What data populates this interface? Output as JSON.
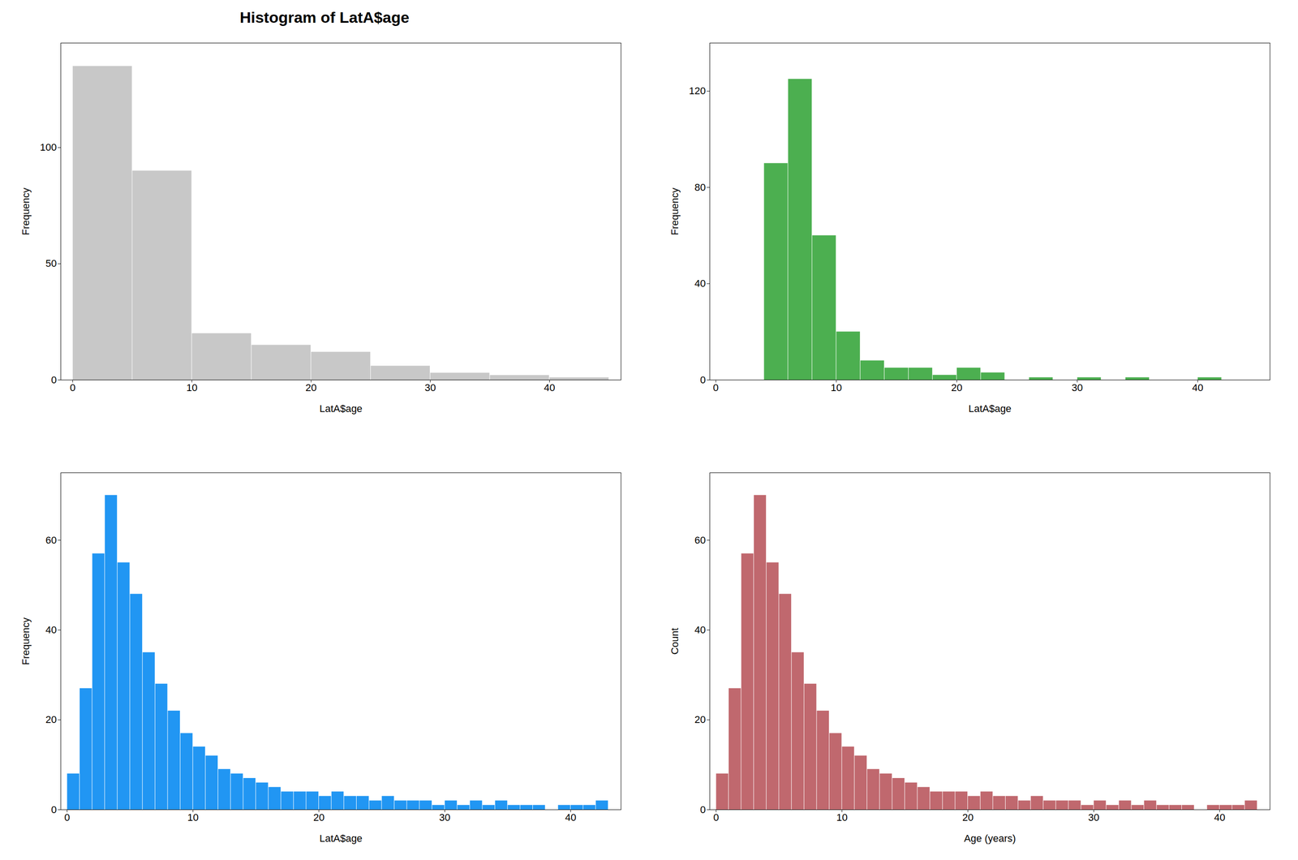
{
  "chart_data": [
    {
      "type": "histogram",
      "title": "Histogram of LatA$age",
      "color": "#c8c8c8",
      "xlabel": "LatA$age",
      "ylabel": "Frequency",
      "xlim": [
        -1,
        46
      ],
      "ylim": [
        0,
        145
      ],
      "xticks": [
        0,
        10,
        20,
        30,
        40
      ],
      "yticks": [
        0,
        50,
        100
      ],
      "bins": [
        0,
        5,
        10,
        15,
        20,
        25,
        30,
        35,
        40,
        45
      ],
      "values": [
        135,
        90,
        20,
        15,
        12,
        6,
        3,
        2,
        1
      ]
    },
    {
      "type": "histogram",
      "color": "#4caf50",
      "xlabel": "LatA$age",
      "ylabel": "Frequency",
      "xlim": [
        -0.5,
        46
      ],
      "ylim": [
        0,
        140
      ],
      "xticks": [
        0,
        10,
        20,
        30,
        40
      ],
      "yticks": [
        0,
        40,
        80,
        120
      ],
      "bins": [
        4,
        6,
        8,
        10,
        12,
        14,
        16,
        18,
        20,
        22,
        24,
        26,
        28,
        30,
        32,
        34,
        36,
        38,
        40,
        42,
        44
      ],
      "values": [
        90,
        125,
        60,
        20,
        8,
        5,
        5,
        2,
        5,
        3,
        0,
        1,
        0,
        1,
        0,
        1,
        0,
        0,
        1,
        0
      ]
    },
    {
      "type": "histogram",
      "color": "#2196f3",
      "xlabel": "LatA$age",
      "ylabel": "Frequency",
      "xlim": [
        -0.5,
        44
      ],
      "ylim": [
        0,
        75
      ],
      "xticks": [
        0,
        10,
        20,
        30,
        40
      ],
      "yticks": [
        0,
        20,
        40,
        60
      ],
      "bins": [
        0,
        1,
        2,
        3,
        4,
        5,
        6,
        7,
        8,
        9,
        10,
        11,
        12,
        13,
        14,
        15,
        16,
        17,
        18,
        19,
        20,
        21,
        22,
        23,
        24,
        25,
        26,
        27,
        28,
        29,
        30,
        31,
        32,
        33,
        34,
        35,
        36,
        37,
        38,
        39,
        40,
        41,
        42,
        43
      ],
      "values": [
        8,
        27,
        57,
        70,
        55,
        48,
        35,
        28,
        22,
        17,
        14,
        12,
        9,
        8,
        7,
        6,
        5,
        4,
        4,
        4,
        3,
        4,
        3,
        3,
        2,
        3,
        2,
        2,
        2,
        1,
        2,
        1,
        2,
        1,
        2,
        1,
        1,
        1,
        0,
        1,
        1,
        1,
        2
      ]
    },
    {
      "type": "histogram",
      "color": "#c0686e",
      "xlabel": "Age (years)",
      "ylabel": "Count",
      "xlim": [
        -0.5,
        44
      ],
      "ylim": [
        0,
        75
      ],
      "xticks": [
        0,
        10,
        20,
        30,
        40
      ],
      "yticks": [
        0,
        20,
        40,
        60
      ],
      "bins": [
        0,
        1,
        2,
        3,
        4,
        5,
        6,
        7,
        8,
        9,
        10,
        11,
        12,
        13,
        14,
        15,
        16,
        17,
        18,
        19,
        20,
        21,
        22,
        23,
        24,
        25,
        26,
        27,
        28,
        29,
        30,
        31,
        32,
        33,
        34,
        35,
        36,
        37,
        38,
        39,
        40,
        41,
        42,
        43
      ],
      "values": [
        8,
        27,
        57,
        70,
        55,
        48,
        35,
        28,
        22,
        17,
        14,
        12,
        9,
        8,
        7,
        6,
        5,
        4,
        4,
        4,
        3,
        4,
        3,
        3,
        2,
        3,
        2,
        2,
        2,
        1,
        2,
        1,
        2,
        1,
        2,
        1,
        1,
        1,
        0,
        1,
        1,
        1,
        2
      ]
    }
  ]
}
